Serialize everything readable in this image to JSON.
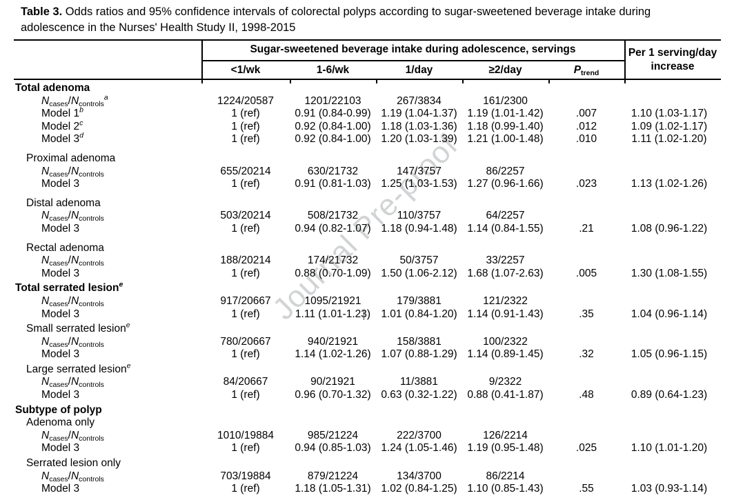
{
  "page": {
    "title_label": "Table 3.",
    "title_text": " Odds ratios and 95% confidence intervals of colorectal polyps according to sugar-sweetened beverage intake during adolescence in the Nurses' Health Study II, 1998-2015",
    "watermark": "Journal Pre-proof",
    "watermark_color": "#9ea3a7",
    "text_color": "#000000"
  },
  "header": {
    "span_label": "Sugar-sweetened beverage intake during adolescence, servings",
    "col_labels": [
      "<1/wk",
      "1-6/wk",
      "1/day",
      "≥2/day"
    ],
    "p_label": "P",
    "p_sub": "trend",
    "last_col_label": "Per 1 serving/day increase"
  },
  "n_label": {
    "n": "N",
    "sub_cases": "cases",
    "slash": "/",
    "sub_controls": "controls"
  },
  "rows": [
    {
      "type": "section",
      "label": "Total adenoma",
      "sup": "",
      "gap": "",
      "cells": [
        "",
        "",
        "",
        "",
        "",
        ""
      ]
    },
    {
      "type": "n",
      "label": "",
      "sup": "a",
      "gap": "",
      "cells": [
        "1224/20587",
        "1201/22103",
        "267/3834",
        "161/2300",
        "",
        ""
      ]
    },
    {
      "type": "model",
      "label": "Model 1",
      "sup": "b",
      "gap": "",
      "cells": [
        "1 (ref)",
        "0.91 (0.84-0.99)",
        "1.19 (1.04-1.37)",
        "1.19 (1.01-1.42)",
        ".007",
        "1.10 (1.03-1.17)"
      ]
    },
    {
      "type": "model",
      "label": "Model 2",
      "sup": "c",
      "gap": "",
      "cells": [
        "1 (ref)",
        "0.92 (0.84-1.00)",
        "1.18 (1.03-1.36)",
        "1.18 (0.99-1.40)",
        ".012",
        "1.09 (1.02-1.17)"
      ]
    },
    {
      "type": "model",
      "label": "Model 3",
      "sup": "d",
      "gap": "",
      "cells": [
        "1 (ref)",
        "0.92 (0.84-1.00)",
        "1.20 (1.03-1.39)",
        "1.21 (1.00-1.48)",
        ".010",
        "1.11 (1.02-1.20)"
      ]
    },
    {
      "type": "subsection",
      "label": "Proximal adenoma",
      "sup": "",
      "gap": "lg",
      "cells": [
        "",
        "",
        "",
        "",
        "",
        ""
      ]
    },
    {
      "type": "n",
      "label": "",
      "sup": "",
      "gap": "",
      "cells": [
        "655/20214",
        "630/21732",
        "147/3757",
        "86/2257",
        "",
        ""
      ]
    },
    {
      "type": "model",
      "label": "Model 3",
      "sup": "",
      "gap": "",
      "cells": [
        "1 (ref)",
        "0.91 (0.81-1.03)",
        "1.25 (1.03-1.53)",
        "1.27 (0.96-1.66)",
        ".023",
        "1.13 (1.02-1.26)"
      ]
    },
    {
      "type": "subsection",
      "label": "Distal adenoma",
      "sup": "",
      "gap": "lg",
      "cells": [
        "",
        "",
        "",
        "",
        "",
        ""
      ]
    },
    {
      "type": "n",
      "label": "",
      "sup": "",
      "gap": "",
      "cells": [
        "503/20214",
        "508/21732",
        "110/3757",
        "64/2257",
        "",
        ""
      ]
    },
    {
      "type": "model",
      "label": "Model 3",
      "sup": "",
      "gap": "",
      "cells": [
        "1 (ref)",
        "0.94 (0.82-1.07)",
        "1.18 (0.94-1.48)",
        "1.14 (0.84-1.55)",
        ".21",
        "1.08 (0.96-1.22)"
      ]
    },
    {
      "type": "subsection",
      "label": "Rectal adenoma",
      "sup": "",
      "gap": "lg",
      "cells": [
        "",
        "",
        "",
        "",
        "",
        ""
      ]
    },
    {
      "type": "n",
      "label": "",
      "sup": "",
      "gap": "",
      "cells": [
        "188/20214",
        "174/21732",
        "50/3757",
        "33/2257",
        "",
        ""
      ]
    },
    {
      "type": "model",
      "label": "Model 3",
      "sup": "",
      "gap": "",
      "cells": [
        "1 (ref)",
        "0.88 (0.70-1.09)",
        "1.50 (1.06-2.12)",
        "1.68 (1.07-2.63)",
        ".005",
        "1.30 (1.08-1.55)"
      ]
    },
    {
      "type": "section",
      "label": "Total serrated lesion",
      "sup": "e",
      "gap": "sm",
      "cells": [
        "",
        "",
        "",
        "",
        "",
        ""
      ]
    },
    {
      "type": "n",
      "label": "",
      "sup": "",
      "gap": "",
      "cells": [
        "917/20667",
        "1095/21921",
        "179/3881",
        "121/2322",
        "",
        ""
      ]
    },
    {
      "type": "model",
      "label": "Model 3",
      "sup": "",
      "gap": "",
      "cells": [
        "1 (ref)",
        "1.11 (1.01-1.23)",
        "1.01 (0.84-1.20)",
        "1.14 (0.91-1.43)",
        ".35",
        "1.04 (0.96-1.14)"
      ]
    },
    {
      "type": "subsection",
      "label": "Small serrated lesion",
      "sup": "e",
      "gap": "sm",
      "cells": [
        "",
        "",
        "",
        "",
        "",
        ""
      ]
    },
    {
      "type": "n",
      "label": "",
      "sup": "",
      "gap": "",
      "cells": [
        "780/20667",
        "940/21921",
        "158/3881",
        "100/2322",
        "",
        ""
      ]
    },
    {
      "type": "model",
      "label": "Model 3",
      "sup": "",
      "gap": "",
      "cells": [
        "1 (ref)",
        "1.14 (1.02-1.26)",
        "1.07 (0.88-1.29)",
        "1.14 (0.89-1.45)",
        ".32",
        "1.05 (0.96-1.15)"
      ]
    },
    {
      "type": "subsection",
      "label": "Large serrated lesion",
      "sup": "e",
      "gap": "sm",
      "cells": [
        "",
        "",
        "",
        "",
        "",
        ""
      ]
    },
    {
      "type": "n",
      "label": "",
      "sup": "",
      "gap": "",
      "cells": [
        "84/20667",
        "90/21921",
        "11/3881",
        "9/2322",
        "",
        ""
      ]
    },
    {
      "type": "model",
      "label": "Model 3",
      "sup": "",
      "gap": "",
      "cells": [
        "1 (ref)",
        "0.96 (0.70-1.32)",
        "0.63 (0.32-1.22)",
        "0.88 (0.41-1.87)",
        ".48",
        "0.89 (0.64-1.23)"
      ]
    },
    {
      "type": "section",
      "label": "Subtype of polyp",
      "sup": "",
      "gap": "sm",
      "cells": [
        "",
        "",
        "",
        "",
        "",
        ""
      ]
    },
    {
      "type": "subsection",
      "label": "Adenoma only",
      "sup": "",
      "gap": "",
      "cells": [
        "",
        "",
        "",
        "",
        "",
        ""
      ]
    },
    {
      "type": "n",
      "label": "",
      "sup": "",
      "gap": "",
      "cells": [
        "1010/19884",
        "985/21224",
        "222/3700",
        "126/2214",
        "",
        ""
      ]
    },
    {
      "type": "model",
      "label": "Model 3",
      "sup": "",
      "gap": "",
      "cells": [
        "1 (ref)",
        "0.94 (0.85-1.03)",
        "1.24 (1.05-1.46)",
        "1.19 (0.95-1.48)",
        ".025",
        "1.10 (1.01-1.20)"
      ]
    },
    {
      "type": "subsection",
      "label": "Serrated lesion only",
      "sup": "",
      "gap": "sm",
      "cells": [
        "",
        "",
        "",
        "",
        "",
        ""
      ]
    },
    {
      "type": "n",
      "label": "",
      "sup": "",
      "gap": "",
      "cells": [
        "703/19884",
        "879/21224",
        "134/3700",
        "86/2214",
        "",
        ""
      ]
    },
    {
      "type": "model",
      "label": "Model 3",
      "sup": "",
      "gap": "",
      "cells": [
        "1 (ref)",
        "1.18 (1.05-1.31)",
        "1.02 (0.84-1.25)",
        "1.10 (0.85-1.43)",
        ".55",
        "1.03 (0.93-1.14)"
      ]
    }
  ]
}
